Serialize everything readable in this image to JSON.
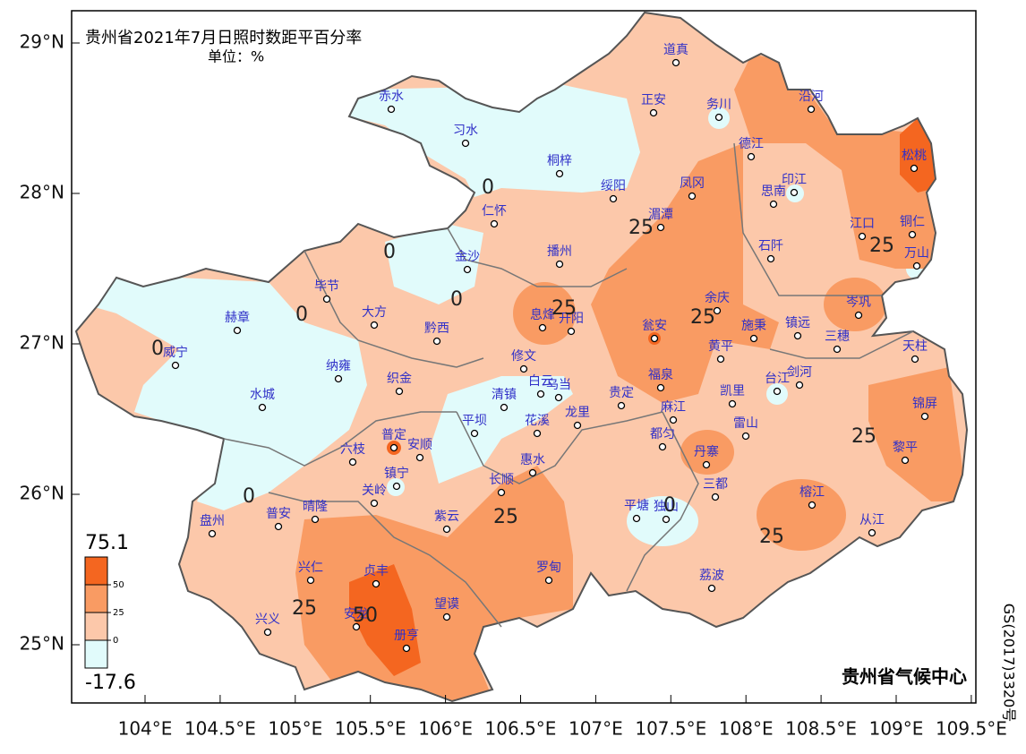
{
  "map": {
    "title": "贵州省2021年7月日照时数距平百分率",
    "unit": "单位：%",
    "lon_ticks": [
      {
        "value": 104,
        "label": "104°E"
      },
      {
        "value": 104.5,
        "label": "104.5°E"
      },
      {
        "value": 105,
        "label": "105°E"
      },
      {
        "value": 105.5,
        "label": "105.5°E"
      },
      {
        "value": 106,
        "label": "106°E"
      },
      {
        "value": 106.5,
        "label": "106.5°E"
      },
      {
        "value": 107,
        "label": "107°E"
      },
      {
        "value": 107.5,
        "label": "107.5°E"
      },
      {
        "value": 108,
        "label": "108°E"
      },
      {
        "value": 108.5,
        "label": "108.5°E"
      },
      {
        "value": 109,
        "label": "109°E"
      },
      {
        "value": 109.5,
        "label": "109.5°E"
      }
    ],
    "lat_ticks": [
      {
        "value": 25,
        "label": "25°N"
      },
      {
        "value": 26,
        "label": "26°N"
      },
      {
        "value": 27,
        "label": "27°N"
      },
      {
        "value": 28,
        "label": "28°N"
      },
      {
        "value": 29,
        "label": "29°N"
      }
    ],
    "legend": {
      "max": 75.1,
      "min": -17.6,
      "levels": [
        50,
        25,
        0
      ]
    },
    "stations": [
      "道真",
      "赤水",
      "正安",
      "务川",
      "沿河",
      "习水",
      "德江",
      "桐梓",
      "绥阳",
      "凤冈",
      "印江",
      "松桃",
      "思南",
      "仁怀",
      "湄潭",
      "江口",
      "铜仁",
      "金沙",
      "播州",
      "石阡",
      "万山",
      "毕节",
      "赫章",
      "大方",
      "黔西",
      "息烽",
      "开阳",
      "瓮安",
      "余庆",
      "施秉",
      "镇远",
      "岑巩",
      "三穗",
      "天柱",
      "威宁",
      "纳雍",
      "织金",
      "修文",
      "白云",
      "乌当",
      "黄平",
      "剑河",
      "台江",
      "福泉",
      "水城",
      "清镇",
      "花溪",
      "龙里",
      "贵定",
      "凯里",
      "麻江",
      "雷山",
      "锦屏",
      "平坝",
      "普定",
      "安顺",
      "六枝",
      "都匀",
      "丹寨",
      "黎平",
      "惠水",
      "镇宁",
      "长顺",
      "关岭",
      "三都",
      "榕江",
      "盘州",
      "普安",
      "晴隆",
      "紫云",
      "平塘",
      "独山",
      "从江",
      "兴仁",
      "贞丰",
      "罗甸",
      "荔波",
      "兴义",
      "安龙",
      "望谟",
      "册亨"
    ],
    "contour_labels": [
      "0",
      "0",
      "0",
      "0",
      "0",
      "0",
      "0",
      "25",
      "25",
      "25",
      "25",
      "25",
      "25",
      "25",
      "25",
      "50"
    ],
    "credit": "贵州省气候中心",
    "approval": "GS(2017)3320号"
  }
}
